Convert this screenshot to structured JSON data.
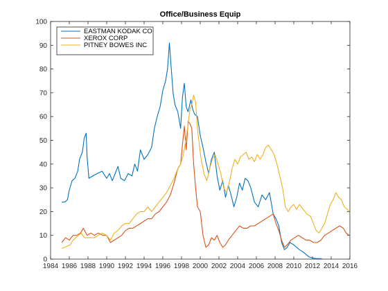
{
  "chart_data": {
    "type": "line",
    "title": "Office/Business Equip",
    "xlabel": "",
    "ylabel": "",
    "xlim": [
      1984,
      2016
    ],
    "ylim": [
      0,
      100
    ],
    "x_ticks": [
      1984,
      1986,
      1988,
      1990,
      1992,
      1994,
      1996,
      1998,
      2000,
      2002,
      2004,
      2006,
      2008,
      2010,
      2012,
      2014,
      2016
    ],
    "y_ticks": [
      0,
      10,
      20,
      30,
      40,
      50,
      60,
      70,
      80,
      90,
      100
    ],
    "grid": false,
    "legend_position": "top-left",
    "series": [
      {
        "name": "EASTMAN KODAK CO",
        "color": "#0072BD",
        "points": [
          [
            1985.2,
            24
          ],
          [
            1985.5,
            24
          ],
          [
            1985.8,
            25
          ],
          [
            1986.0,
            29
          ],
          [
            1986.3,
            33
          ],
          [
            1986.6,
            34
          ],
          [
            1986.9,
            37
          ],
          [
            1987.1,
            42
          ],
          [
            1987.4,
            45
          ],
          [
            1987.6,
            51
          ],
          [
            1987.8,
            53
          ],
          [
            1987.9,
            43
          ],
          [
            1988.1,
            34
          ],
          [
            1988.5,
            35
          ],
          [
            1989.0,
            36
          ],
          [
            1989.5,
            37
          ],
          [
            1990.0,
            34
          ],
          [
            1990.3,
            36
          ],
          [
            1990.6,
            33
          ],
          [
            1990.9,
            36
          ],
          [
            1991.2,
            39
          ],
          [
            1991.5,
            34
          ],
          [
            1991.9,
            33
          ],
          [
            1992.3,
            36
          ],
          [
            1992.7,
            35
          ],
          [
            1993.0,
            40
          ],
          [
            1993.3,
            37
          ],
          [
            1993.6,
            46
          ],
          [
            1994.0,
            42
          ],
          [
            1994.4,
            44
          ],
          [
            1994.8,
            47
          ],
          [
            1995.1,
            55
          ],
          [
            1995.4,
            60
          ],
          [
            1995.7,
            64
          ],
          [
            1996.0,
            71
          ],
          [
            1996.3,
            75
          ],
          [
            1996.5,
            80
          ],
          [
            1996.7,
            91
          ],
          [
            1996.9,
            80
          ],
          [
            1997.1,
            70
          ],
          [
            1997.3,
            65
          ],
          [
            1997.6,
            62
          ],
          [
            1997.9,
            55
          ],
          [
            1998.1,
            68
          ],
          [
            1998.3,
            74
          ],
          [
            1998.5,
            64
          ],
          [
            1998.7,
            62
          ],
          [
            1999.0,
            67
          ],
          [
            1999.2,
            63
          ],
          [
            1999.4,
            61
          ],
          [
            1999.7,
            60
          ],
          [
            2000.0,
            52
          ],
          [
            2000.3,
            47
          ],
          [
            2000.6,
            41
          ],
          [
            2000.9,
            36
          ],
          [
            2001.2,
            42
          ],
          [
            2001.5,
            45
          ],
          [
            2001.8,
            35
          ],
          [
            2002.1,
            29
          ],
          [
            2002.4,
            33
          ],
          [
            2002.7,
            26
          ],
          [
            2003.0,
            31
          ],
          [
            2003.3,
            27
          ],
          [
            2003.6,
            22
          ],
          [
            2003.9,
            26
          ],
          [
            2004.2,
            32
          ],
          [
            2004.5,
            29
          ],
          [
            2004.8,
            34
          ],
          [
            2005.1,
            33
          ],
          [
            2005.4,
            30
          ],
          [
            2005.8,
            24
          ],
          [
            2006.2,
            22
          ],
          [
            2006.6,
            27
          ],
          [
            2007.0,
            25
          ],
          [
            2007.4,
            28
          ],
          [
            2007.8,
            19
          ],
          [
            2008.1,
            17
          ],
          [
            2008.4,
            14
          ],
          [
            2008.7,
            7
          ],
          [
            2009.0,
            4
          ],
          [
            2009.3,
            5
          ],
          [
            2009.6,
            7
          ],
          [
            2010.0,
            6
          ],
          [
            2010.3,
            5
          ],
          [
            2010.6,
            4
          ],
          [
            2011.0,
            3
          ],
          [
            2011.3,
            2
          ],
          [
            2011.6,
            1
          ],
          [
            2012.0,
            0.5
          ],
          [
            2012.3,
            0.3
          ],
          [
            2012.7,
            0.2
          ],
          [
            2013.0,
            0.2
          ]
        ]
      },
      {
        "name": "XEROX CORP",
        "color": "#D95319",
        "points": [
          [
            1985.2,
            7
          ],
          [
            1985.6,
            9
          ],
          [
            1986.0,
            8
          ],
          [
            1986.4,
            10
          ],
          [
            1986.8,
            10
          ],
          [
            1987.2,
            11
          ],
          [
            1987.5,
            13
          ],
          [
            1987.9,
            10
          ],
          [
            1988.3,
            11
          ],
          [
            1988.7,
            10
          ],
          [
            1989.1,
            11
          ],
          [
            1989.6,
            10
          ],
          [
            1990.0,
            10
          ],
          [
            1990.4,
            7
          ],
          [
            1990.8,
            8
          ],
          [
            1991.2,
            9
          ],
          [
            1991.6,
            10
          ],
          [
            1992.0,
            12
          ],
          [
            1992.4,
            13
          ],
          [
            1992.8,
            13
          ],
          [
            1993.2,
            14
          ],
          [
            1993.6,
            15
          ],
          [
            1994.0,
            16
          ],
          [
            1994.4,
            17
          ],
          [
            1994.8,
            17
          ],
          [
            1995.2,
            19
          ],
          [
            1995.6,
            20
          ],
          [
            1996.0,
            22
          ],
          [
            1996.4,
            24
          ],
          [
            1996.8,
            27
          ],
          [
            1997.2,
            32
          ],
          [
            1997.6,
            38
          ],
          [
            1997.9,
            40
          ],
          [
            1998.1,
            48
          ],
          [
            1998.3,
            56
          ],
          [
            1998.5,
            46
          ],
          [
            1998.7,
            58
          ],
          [
            1998.9,
            57
          ],
          [
            1999.1,
            55
          ],
          [
            1999.3,
            40
          ],
          [
            1999.5,
            30
          ],
          [
            1999.7,
            22
          ],
          [
            2000.0,
            20
          ],
          [
            2000.3,
            10
          ],
          [
            2000.6,
            5
          ],
          [
            2000.9,
            6
          ],
          [
            2001.2,
            9
          ],
          [
            2001.5,
            8
          ],
          [
            2001.8,
            10
          ],
          [
            2002.1,
            7
          ],
          [
            2002.4,
            5
          ],
          [
            2002.7,
            6
          ],
          [
            2003.0,
            8
          ],
          [
            2003.4,
            10
          ],
          [
            2003.8,
            12
          ],
          [
            2004.2,
            14
          ],
          [
            2004.6,
            13
          ],
          [
            2005.0,
            13
          ],
          [
            2005.4,
            14
          ],
          [
            2005.8,
            14
          ],
          [
            2006.2,
            15
          ],
          [
            2006.6,
            16
          ],
          [
            2007.0,
            17
          ],
          [
            2007.4,
            18
          ],
          [
            2007.8,
            19
          ],
          [
            2008.1,
            15
          ],
          [
            2008.4,
            12
          ],
          [
            2008.7,
            8
          ],
          [
            2009.0,
            5
          ],
          [
            2009.3,
            6
          ],
          [
            2009.7,
            8
          ],
          [
            2010.1,
            9
          ],
          [
            2010.5,
            10
          ],
          [
            2010.9,
            9
          ],
          [
            2011.3,
            8
          ],
          [
            2011.7,
            8
          ],
          [
            2012.1,
            7
          ],
          [
            2012.5,
            7
          ],
          [
            2012.9,
            8
          ],
          [
            2013.3,
            10
          ],
          [
            2013.7,
            11
          ],
          [
            2014.1,
            12
          ],
          [
            2014.5,
            13
          ],
          [
            2014.9,
            14
          ],
          [
            2015.3,
            13
          ],
          [
            2015.6,
            11
          ],
          [
            2015.9,
            10
          ]
        ]
      },
      {
        "name": "PITNEY BOWES INC",
        "color": "#EDB120",
        "points": [
          [
            1985.2,
            4.5
          ],
          [
            1985.5,
            5
          ],
          [
            1985.8,
            5.5
          ],
          [
            1986.1,
            6
          ],
          [
            1986.4,
            8
          ],
          [
            1986.7,
            9
          ],
          [
            1987.0,
            10
          ],
          [
            1987.3,
            11
          ],
          [
            1987.6,
            9
          ],
          [
            1987.9,
            9
          ],
          [
            1988.3,
            9
          ],
          [
            1988.7,
            9
          ],
          [
            1989.1,
            10
          ],
          [
            1989.5,
            11
          ],
          [
            1990.0,
            10
          ],
          [
            1990.4,
            8
          ],
          [
            1990.8,
            11
          ],
          [
            1991.2,
            12
          ],
          [
            1991.6,
            14
          ],
          [
            1992.0,
            15
          ],
          [
            1992.4,
            15
          ],
          [
            1992.8,
            17
          ],
          [
            1993.2,
            19
          ],
          [
            1993.6,
            20
          ],
          [
            1994.0,
            20
          ],
          [
            1994.4,
            22
          ],
          [
            1994.8,
            20
          ],
          [
            1995.2,
            22
          ],
          [
            1995.6,
            24
          ],
          [
            1996.0,
            26
          ],
          [
            1996.4,
            28
          ],
          [
            1996.8,
            31
          ],
          [
            1997.2,
            34
          ],
          [
            1997.6,
            38
          ],
          [
            1997.9,
            40
          ],
          [
            1998.2,
            44
          ],
          [
            1998.5,
            51
          ],
          [
            1998.7,
            57
          ],
          [
            1998.9,
            63
          ],
          [
            1999.1,
            65
          ],
          [
            1999.3,
            69
          ],
          [
            1999.5,
            66
          ],
          [
            1999.7,
            55
          ],
          [
            1999.9,
            48
          ],
          [
            2000.1,
            42
          ],
          [
            2000.4,
            36
          ],
          [
            2000.7,
            33
          ],
          [
            2001.0,
            38
          ],
          [
            2001.3,
            42
          ],
          [
            2001.6,
            44
          ],
          [
            2001.9,
            40
          ],
          [
            2002.2,
            36
          ],
          [
            2002.5,
            30
          ],
          [
            2002.8,
            28
          ],
          [
            2003.1,
            32
          ],
          [
            2003.4,
            38
          ],
          [
            2003.7,
            42
          ],
          [
            2004.0,
            40
          ],
          [
            2004.3,
            43
          ],
          [
            2004.6,
            44
          ],
          [
            2004.9,
            45
          ],
          [
            2005.2,
            42
          ],
          [
            2005.5,
            43
          ],
          [
            2005.8,
            41
          ],
          [
            2006.1,
            44
          ],
          [
            2006.4,
            42
          ],
          [
            2006.7,
            44
          ],
          [
            2007.0,
            47
          ],
          [
            2007.3,
            48
          ],
          [
            2007.6,
            46
          ],
          [
            2007.9,
            44
          ],
          [
            2008.2,
            40
          ],
          [
            2008.5,
            35
          ],
          [
            2008.8,
            30
          ],
          [
            2009.1,
            22
          ],
          [
            2009.4,
            20
          ],
          [
            2009.7,
            22
          ],
          [
            2010.0,
            23
          ],
          [
            2010.3,
            21
          ],
          [
            2010.6,
            23
          ],
          [
            2011.0,
            21
          ],
          [
            2011.4,
            19
          ],
          [
            2011.8,
            18
          ],
          [
            2012.1,
            15
          ],
          [
            2012.4,
            12
          ],
          [
            2012.7,
            11
          ],
          [
            2013.0,
            13
          ],
          [
            2013.3,
            15
          ],
          [
            2013.6,
            19
          ],
          [
            2013.9,
            23
          ],
          [
            2014.2,
            25
          ],
          [
            2014.5,
            28
          ],
          [
            2014.8,
            26
          ],
          [
            2015.1,
            25
          ],
          [
            2015.4,
            22
          ],
          [
            2015.7,
            21
          ],
          [
            2015.9,
            20
          ]
        ]
      }
    ]
  }
}
